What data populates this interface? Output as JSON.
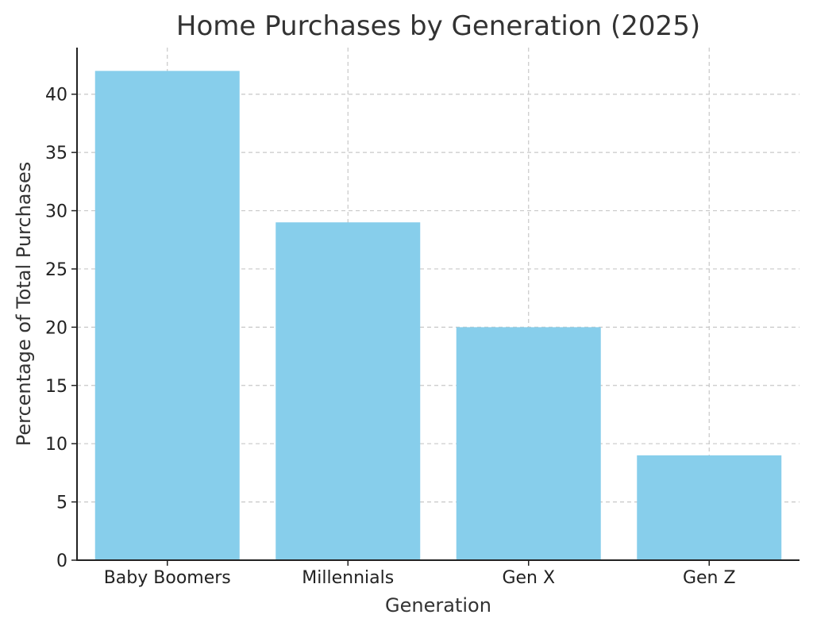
{
  "chart_data": {
    "type": "bar",
    "title": "Home Purchases by Generation (2025)",
    "xlabel": "Generation",
    "ylabel": "Percentage of Total Purchases",
    "categories": [
      "Baby Boomers",
      "Millennials",
      "Gen X",
      "Gen Z"
    ],
    "values": [
      42,
      29,
      20,
      9
    ],
    "ylim": [
      0,
      44
    ],
    "yticks": [
      0,
      5,
      10,
      15,
      20,
      25,
      30,
      35,
      40
    ],
    "grid": true,
    "bar_color": "#87CEEB"
  }
}
